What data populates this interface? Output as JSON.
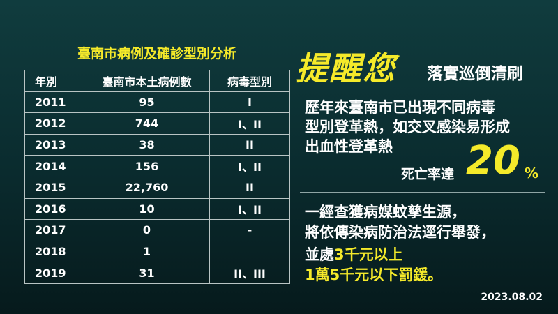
{
  "table": {
    "title": "臺南市病例及確診型別分析",
    "header": [
      "年別",
      "臺南市本土病例數",
      "病毒型別"
    ],
    "rows": [
      [
        "2011",
        "95",
        "I"
      ],
      [
        "2012",
        "744",
        "I、II"
      ],
      [
        "2013",
        "38",
        "II"
      ],
      [
        "2014",
        "156",
        "I、II"
      ],
      [
        "2015",
        "22,760",
        "II"
      ],
      [
        "2016",
        "10",
        "I、II"
      ],
      [
        "2017",
        "0",
        "-"
      ],
      [
        "2018",
        "1",
        null
      ],
      [
        "2019",
        "31",
        "II、III"
      ]
    ]
  },
  "reminder": {
    "title": "提醒您",
    "subtitle": "落實巡倒清刷",
    "lines": [
      "歷年來臺南市已出現不同病毒",
      "型別登革熱，如交叉感染易形成",
      "出血性登革熱"
    ],
    "rate_label": "死亡率達",
    "rate_number": "20",
    "rate_unit": "%"
  },
  "penalty": {
    "lines": [
      "一經查獲病媒蚊孳生源，",
      "將依傳染病防治法逕行舉發，"
    ],
    "line3_prefix": "並處",
    "line3_highlight": "3千元以上",
    "line4": "1萬5千元以下罰鍰。"
  },
  "date": "2023.08.02"
}
